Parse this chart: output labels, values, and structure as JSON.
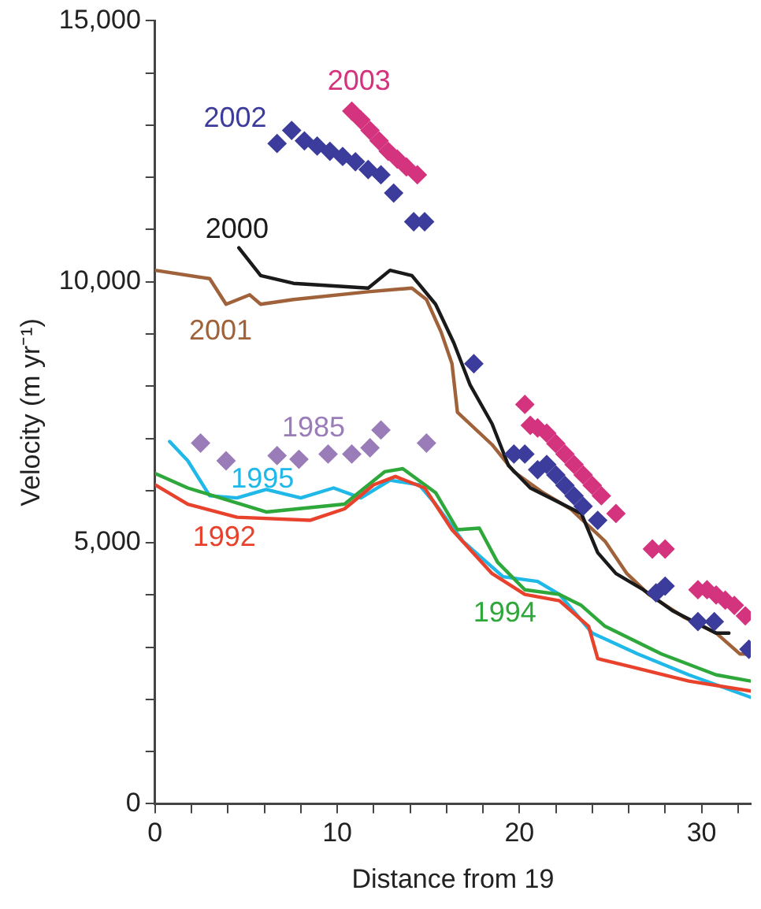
{
  "chart_data": {
    "type": "line",
    "xlabel": "Distance from 19",
    "ylabel": "Velocity (m yr⁻¹)",
    "xlim": [
      0,
      32.7
    ],
    "ylim": [
      0,
      15000
    ],
    "xticks": [
      0,
      {
        "value": 2,
        "label": null
      },
      {
        "value": 4,
        "label": null
      },
      {
        "value": 6,
        "label": null
      },
      {
        "value": 8,
        "label": null
      },
      10,
      {
        "value": 12,
        "label": null
      },
      {
        "value": 14,
        "label": null
      },
      {
        "value": 16,
        "label": null
      },
      {
        "value": 18,
        "label": null
      },
      20,
      {
        "value": 22,
        "label": null
      },
      {
        "value": 24,
        "label": null
      },
      {
        "value": 26,
        "label": null
      },
      {
        "value": 28,
        "label": null
      },
      30,
      {
        "value": 32,
        "label": null
      }
    ],
    "yticks": [
      0,
      {
        "value": 1000,
        "label": null
      },
      {
        "value": 2000,
        "label": null
      },
      {
        "value": 3000,
        "label": null
      },
      {
        "value": 4000,
        "label": null
      },
      {
        "value": 5000,
        "label": "5,000"
      },
      {
        "value": 6000,
        "label": null
      },
      {
        "value": 7000,
        "label": null
      },
      {
        "value": 8000,
        "label": null
      },
      {
        "value": 9000,
        "label": null
      },
      {
        "value": 10000,
        "label": "10,000"
      },
      {
        "value": 11000,
        "label": null
      },
      {
        "value": 12000,
        "label": null
      },
      {
        "value": 13000,
        "label": null
      },
      {
        "value": 14000,
        "label": null
      },
      {
        "value": 15000,
        "label": "15,000"
      }
    ],
    "grid": false,
    "legend": false,
    "series": [
      {
        "name": "2003",
        "type": "scatter",
        "marker": "diamond",
        "color": "#d4337e",
        "x": [
          10.8,
          11.3,
          11.8,
          12.3,
          12.8,
          13.3,
          13.8,
          14.4,
          20.3,
          20.6,
          21.0,
          21.5,
          22.0,
          22.5,
          23.0,
          23.5,
          24.0,
          24.5,
          25.3,
          27.3,
          28.0,
          29.8,
          30.3,
          30.8,
          31.3,
          31.8,
          32.4
        ],
        "values": [
          13270,
          13100,
          12900,
          12700,
          12500,
          12350,
          12200,
          12050,
          7650,
          7250,
          7200,
          7100,
          6900,
          6700,
          6500,
          6300,
          6100,
          5900,
          5560,
          4880,
          4880,
          4100,
          4100,
          4000,
          3900,
          3800,
          3600
        ]
      },
      {
        "name": "2002",
        "type": "scatter",
        "marker": "diamond",
        "color": "#3c3c9c",
        "x": [
          6.7,
          7.5,
          8.2,
          8.9,
          9.6,
          10.3,
          11.0,
          11.7,
          12.4,
          13.1,
          14.2,
          14.8,
          17.5,
          19.7,
          20.3,
          21.0,
          21.5,
          22.0,
          22.5,
          23.0,
          23.5,
          24.3,
          27.5,
          28.0,
          29.8,
          30.7,
          32.6
        ],
        "values": [
          12650,
          12900,
          12700,
          12600,
          12500,
          12400,
          12300,
          12150,
          12050,
          11700,
          11150,
          11150,
          8430,
          6700,
          6700,
          6400,
          6500,
          6300,
          6100,
          5900,
          5700,
          5430,
          4040,
          4170,
          3490,
          3490,
          2960
        ]
      },
      {
        "name": "2000",
        "color": "#1a1a1a",
        "x": [
          4.6,
          5.8,
          7.6,
          11.7,
          12.9,
          14.1,
          15.4,
          16.4,
          17.3,
          18.5,
          19.4,
          20.6,
          23.4,
          24.3,
          25.3,
          26.8,
          28.4,
          30.8,
          31.5
        ],
        "values": [
          10650,
          10120,
          9970,
          9880,
          10220,
          10120,
          9570,
          8830,
          8020,
          7280,
          6480,
          6050,
          5560,
          4810,
          4410,
          4100,
          3700,
          3270,
          3270
        ]
      },
      {
        "name": "2001",
        "color": "#a0623a",
        "x": [
          0,
          3.0,
          3.9,
          5.2,
          5.8,
          7.6,
          11.7,
          14.1,
          14.9,
          15.7,
          16.3,
          16.6,
          18.5,
          19.7,
          21.3,
          22.8,
          24.7,
          25.9,
          27.1,
          29.0,
          30.8,
          32.1,
          32.7
        ],
        "values": [
          10220,
          10060,
          9570,
          9750,
          9570,
          9660,
          9810,
          9880,
          9660,
          9040,
          8430,
          7500,
          6880,
          6360,
          5960,
          5650,
          5030,
          4410,
          4010,
          3580,
          3270,
          2870,
          2870
        ]
      },
      {
        "name": "1985",
        "type": "scatter",
        "marker": "diamond",
        "color": "#9a7cb8",
        "x": [
          2.5,
          3.9,
          6.7,
          7.9,
          9.5,
          10.8,
          11.8,
          12.4,
          14.9
        ],
        "values": [
          6910,
          6570,
          6670,
          6600,
          6700,
          6700,
          6820,
          7160,
          6910
        ]
      },
      {
        "name": "1992",
        "color": "#e8412c",
        "x": [
          0,
          1.8,
          4.5,
          8.5,
          10.4,
          12.0,
          13.2,
          14.8,
          16.3,
          18.5,
          20.3,
          22.2,
          23.8,
          24.3,
          26.2,
          29.3,
          32.7
        ],
        "values": [
          6110,
          5740,
          5490,
          5430,
          5650,
          6110,
          6270,
          6050,
          5250,
          4410,
          4010,
          3890,
          3400,
          2780,
          2620,
          2350,
          2160
        ]
      },
      {
        "name": "1994",
        "color": "#2ea83a",
        "x": [
          0,
          1.8,
          6.1,
          10.4,
          12.6,
          13.6,
          15.4,
          16.6,
          17.8,
          18.8,
          20.3,
          22.2,
          23.4,
          24.7,
          27.8,
          30.8,
          32.7
        ],
        "values": [
          6330,
          6050,
          5590,
          5740,
          6360,
          6420,
          5960,
          5250,
          5280,
          4630,
          4100,
          4010,
          3800,
          3400,
          2870,
          2470,
          2350
        ]
      },
      {
        "name": "1995",
        "color": "#1fb8e8",
        "x": [
          0.8,
          1.8,
          3.0,
          4.5,
          6.1,
          8.0,
          9.8,
          11.3,
          12.9,
          14.5,
          15.4,
          16.9,
          19.1,
          21.0,
          22.2,
          24.0,
          26.5,
          29.3,
          32.7
        ],
        "values": [
          6940,
          6570,
          5900,
          5860,
          6020,
          5860,
          6050,
          5860,
          6200,
          6110,
          5740,
          5030,
          4350,
          4260,
          4010,
          3270,
          2870,
          2470,
          2040
        ]
      }
    ]
  }
}
